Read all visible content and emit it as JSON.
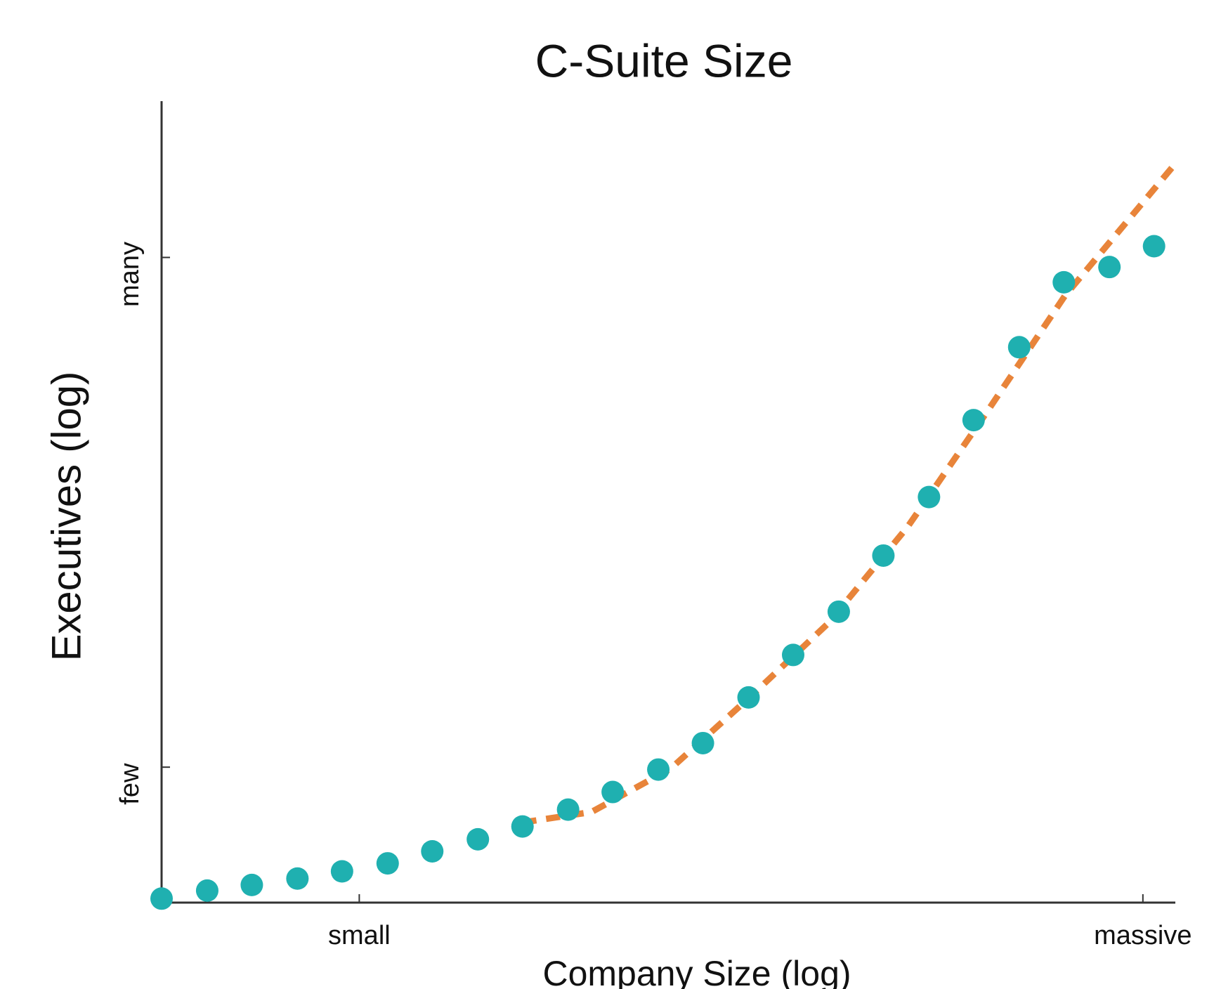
{
  "chart_data": {
    "type": "scatter",
    "title": "C-Suite Size",
    "xlabel": "Company Size (log)",
    "ylabel": "Executives (log)",
    "xlim": [
      0,
      100
    ],
    "ylim": [
      0,
      100
    ],
    "xticks": [
      {
        "value": 19.5,
        "label": "small"
      },
      {
        "value": 96.8,
        "label": "massive"
      }
    ],
    "yticks": [
      {
        "value": 16.9,
        "label": "few"
      },
      {
        "value": 80.5,
        "label": "many"
      }
    ],
    "series": [
      {
        "type": "scatter",
        "color": "#1fb0b0",
        "x": [
          0,
          4.5,
          8.9,
          13.4,
          17.8,
          22.3,
          26.7,
          31.2,
          35.6,
          40.1,
          44.5,
          49,
          53.4,
          57.9,
          62.3,
          66.8,
          71.2,
          75.7,
          80.1,
          84.6,
          89,
          93.5,
          97.9
        ],
        "values": [
          0.5,
          1.5,
          2.2,
          3.0,
          3.9,
          4.9,
          6.4,
          7.9,
          9.5,
          11.6,
          13.8,
          16.6,
          19.9,
          25.6,
          30.9,
          36.3,
          43.3,
          50.6,
          60.2,
          69.3,
          77.4,
          79.3,
          81.9
        ]
      },
      {
        "type": "line",
        "color": "#e8843a",
        "dashed": true,
        "x": [
          35.6,
          42.4,
          50.2,
          58.0,
          65.8,
          73.6,
          81.3,
          89.1,
          99.8
        ],
        "values": [
          10.0,
          11.3,
          16.7,
          25.6,
          34.9,
          46.9,
          61.0,
          75.7,
          91.9
        ]
      }
    ]
  }
}
